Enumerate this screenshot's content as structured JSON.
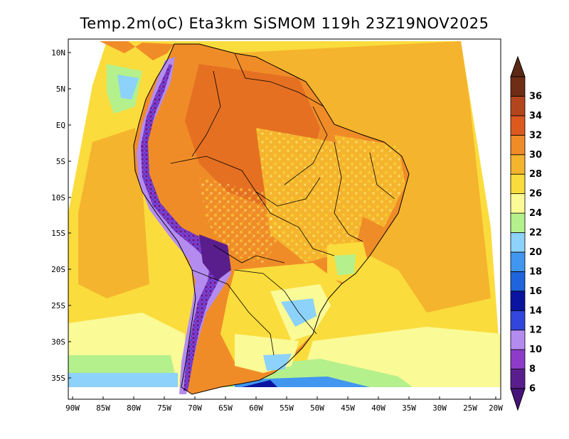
{
  "title": "Temp.2m(oC) Eta3km SiSMOM 119h 23Z19NOV2025",
  "map": {
    "lat_labels": [
      "10N",
      "5N",
      "EQ",
      "5S",
      "10S",
      "15S",
      "20S",
      "25S",
      "30S",
      "35S"
    ],
    "lon_labels": [
      "90W",
      "85W",
      "80W",
      "75W",
      "70W",
      "65W",
      "60W",
      "55W",
      "50W",
      "45W",
      "40W",
      "35W",
      "30W",
      "25W",
      "20W"
    ],
    "lat_range": [
      -38,
      11
    ],
    "lon_range": [
      -91,
      -20
    ]
  },
  "colorbar": {
    "levels": [
      "6",
      "8",
      "10",
      "12",
      "14",
      "16",
      "18",
      "20",
      "22",
      "24",
      "26",
      "28",
      "30",
      "32",
      "34",
      "36"
    ],
    "colors": [
      "#5a1e8c",
      "#8c3cc8",
      "#b48cf0",
      "#3246dc",
      "#0a14a0",
      "#1e64dc",
      "#4196f0",
      "#8cd2fa",
      "#b4f08c",
      "#fafa96",
      "#fadc3c",
      "#f5b42d",
      "#f08c28",
      "#dc5a1e",
      "#b4461e",
      "#6e2d14"
    ],
    "below_color": "#461478",
    "above_color": "#5a2814"
  },
  "colors": {
    "ocean_warm": "#f5b42d",
    "ocean_mid": "#fadc3c",
    "ocean_cool": "#fafa96",
    "land_hot": "#f08c28",
    "andes": "#5a1e8c"
  }
}
